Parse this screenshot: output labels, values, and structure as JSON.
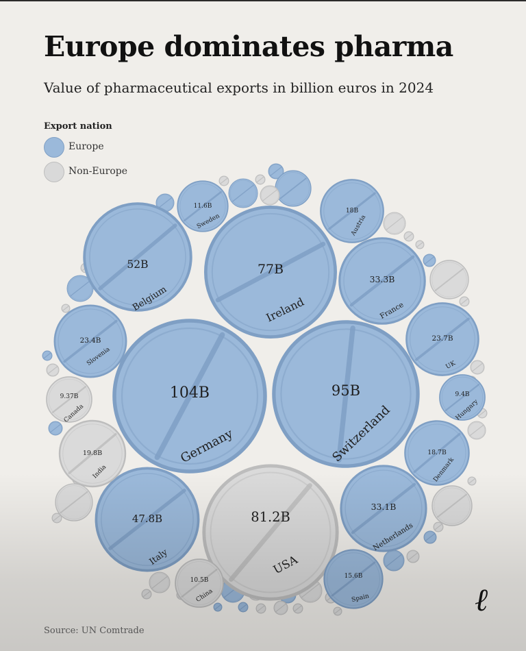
{
  "header": {
    "title": "Europe dominates pharma",
    "subtitle": "Value of pharmaceutical exports in billion euros in 2024"
  },
  "legend": {
    "title": "Export nation",
    "items": [
      {
        "label": "Europe",
        "color": "#9bb9da"
      },
      {
        "label": "Non-Europe",
        "color": "#d9d9d9"
      }
    ]
  },
  "colors": {
    "europe": "#9bb9da",
    "europe_stroke": "#7f9fc4",
    "non_europe": "#dadada",
    "non_europe_stroke": "#bdbdbd",
    "background": "#f0eeea"
  },
  "chart_data": {
    "type": "bubble",
    "unit": "billion euros",
    "series": [
      {
        "country": "Germany",
        "value": 104,
        "label": "104B",
        "group": "Europe"
      },
      {
        "country": "Switzerland",
        "value": 95,
        "label": "95B",
        "group": "Europe"
      },
      {
        "country": "USA",
        "value": 81.2,
        "label": "81.2B",
        "group": "Non-Europe"
      },
      {
        "country": "Ireland",
        "value": 77,
        "label": "77B",
        "group": "Europe"
      },
      {
        "country": "Belgium",
        "value": 52,
        "label": "52B",
        "group": "Europe"
      },
      {
        "country": "Italy",
        "value": 47.8,
        "label": "47.8B",
        "group": "Europe"
      },
      {
        "country": "France",
        "value": 33.3,
        "label": "33.3B",
        "group": "Europe"
      },
      {
        "country": "Netherlands",
        "value": 33.1,
        "label": "33.1B",
        "group": "Europe"
      },
      {
        "country": "UK",
        "value": 23.7,
        "label": "23.7B",
        "group": "Europe"
      },
      {
        "country": "Slovenia",
        "value": 23.4,
        "label": "23.4B",
        "group": "Europe"
      },
      {
        "country": "India",
        "value": 19.8,
        "label": "19.8B",
        "group": "Non-Europe"
      },
      {
        "country": "Denmark",
        "value": 18.7,
        "label": "18.7B",
        "group": "Europe"
      },
      {
        "country": "Austria",
        "value": 18,
        "label": "18B",
        "group": "Europe"
      },
      {
        "country": "Spain",
        "value": 15.6,
        "label": "15.6B",
        "group": "Europe"
      },
      {
        "country": "Sweden",
        "value": 11.6,
        "label": "11.6B",
        "group": "Europe"
      },
      {
        "country": "China",
        "value": 10.5,
        "label": "10.5B",
        "group": "Non-Europe"
      },
      {
        "country": "Hungary",
        "value": 9.4,
        "label": "9.4B",
        "group": "Europe"
      },
      {
        "country": "Canada",
        "value": 9.37,
        "label": "9.37B",
        "group": "Non-Europe"
      }
    ]
  },
  "footer": {
    "source": "Source: UN Comtrade",
    "brand_mark": "ℓ"
  }
}
